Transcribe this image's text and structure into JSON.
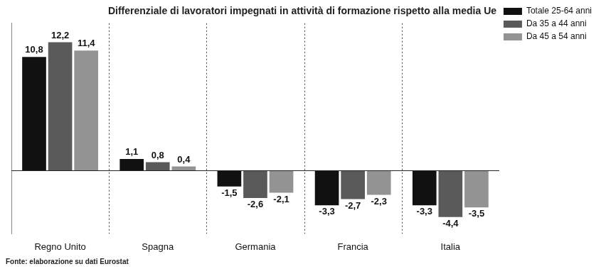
{
  "chart_data": {
    "type": "bar",
    "title": "Differenziale di lavoratori impegnati in attività di formazione rispetto alla media Ue",
    "source": "Fonte: elaborazione su dati Eurostat",
    "categories": [
      "Regno Unito",
      "Spagna",
      "Germania",
      "Francia",
      "Italia"
    ],
    "series": [
      {
        "name": "Totale 25-64 anni",
        "color": "#111111",
        "values": [
          10.8,
          1.1,
          -1.5,
          -3.3,
          -3.3
        ],
        "value_labels": [
          "10,8",
          "1,1",
          "-1,5",
          "-3,3",
          "-3,3"
        ]
      },
      {
        "name": "Da 35 a 44 anni",
        "color": "#5a5a5a",
        "values": [
          12.2,
          0.8,
          -2.6,
          -2.7,
          -4.4
        ],
        "value_labels": [
          "12,2",
          "0,8",
          "-2,6",
          "-2,7",
          "-4,4"
        ]
      },
      {
        "name": "Da 45 a 54 anni",
        "color": "#939393",
        "values": [
          11.4,
          0.4,
          -2.1,
          -2.3,
          -3.5
        ],
        "value_labels": [
          "11,4",
          "0,4",
          "-2,1",
          "-2,3",
          "-3,5"
        ]
      }
    ],
    "ylim": [
      -6,
      14
    ],
    "grid": false,
    "legend": "upper right",
    "data_labels": true,
    "tick_labels": "x"
  }
}
